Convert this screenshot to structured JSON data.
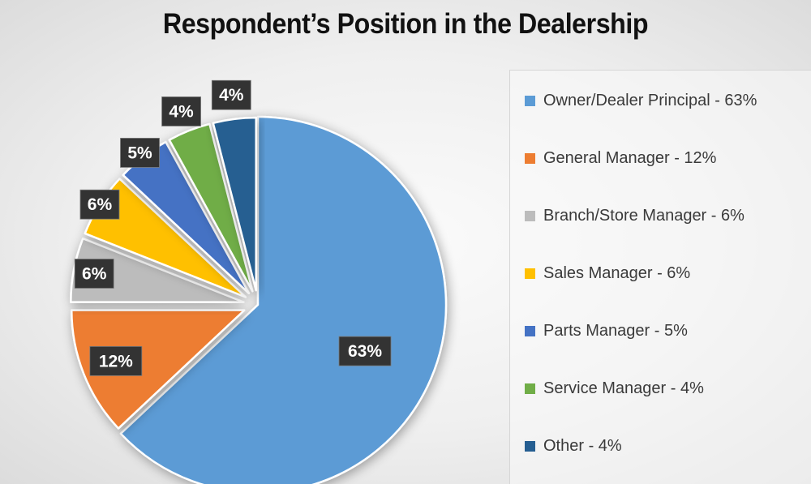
{
  "chart_data": {
    "type": "pie",
    "title": "Respondent’s Position in the Dealership",
    "legend_position": "right",
    "slices": [
      {
        "label": "Owner/Dealer Principal",
        "value": 63,
        "value_label": "63%",
        "legend_text": "Owner/Dealer Principal - 63%",
        "color": "#5b9bd5",
        "exploded": false
      },
      {
        "label": "General Manager",
        "value": 12,
        "value_label": "12%",
        "legend_text": "General Manager - 12%",
        "color": "#ed7d31",
        "exploded": true
      },
      {
        "label": "Branch/Store Manager",
        "value": 6,
        "value_label": "6%",
        "legend_text": "Branch/Store Manager - 6%",
        "color": "#bcbcbc",
        "exploded": true
      },
      {
        "label": "Sales Manager",
        "value": 6,
        "value_label": "6%",
        "legend_text": "Sales Manager - 6%",
        "color": "#ffc000",
        "exploded": true
      },
      {
        "label": "Parts Manager",
        "value": 5,
        "value_label": "5%",
        "legend_text": "Parts Manager - 5%",
        "color": "#4472c4",
        "exploded": true
      },
      {
        "label": "Service Manager",
        "value": 4,
        "value_label": "4%",
        "legend_text": "Service Manager - 4%",
        "color": "#70ad47",
        "exploded": true
      },
      {
        "label": "Other",
        "value": 4,
        "value_label": "4%",
        "legend_text": "Other - 4%",
        "color": "#255e91",
        "exploded": true
      }
    ],
    "label_box_color": "#333333"
  }
}
